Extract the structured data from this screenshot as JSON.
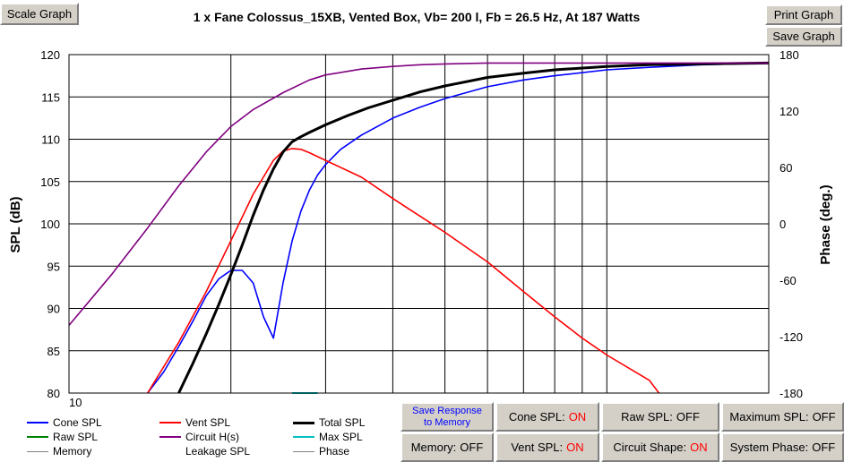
{
  "title": "1 x Fane Colossus_15XB,  Vented Box, Vb= 200 l,  Fb = 26.5 Hz,  At 187 Watts",
  "buttons": {
    "scale_graph": "Scale Graph",
    "print_graph": "Print Graph",
    "save_graph": "Save Graph",
    "save_response_line1": "Save Response",
    "save_response_line2": "to Memory",
    "cone_spl": {
      "label": "Cone SPL:",
      "state": "ON"
    },
    "raw_spl": {
      "label": "Raw SPL:",
      "state": "OFF"
    },
    "maximum_spl": {
      "label": "Maximum SPL:",
      "state": "OFF"
    },
    "memory": {
      "label": "Memory:",
      "state": "OFF"
    },
    "vent_spl": {
      "label": "Vent SPL:",
      "state": "ON"
    },
    "circuit_shape": {
      "label": "Circuit Shape:",
      "state": "ON"
    },
    "system_phase": {
      "label": "System Phase:",
      "state": "OFF"
    }
  },
  "legend": [
    {
      "name": "Cone SPL",
      "color": "#0000ff"
    },
    {
      "name": "Vent SPL",
      "color": "#ff0000"
    },
    {
      "name": "Total SPL",
      "color": "#000000"
    },
    {
      "name": "Raw SPL",
      "color": "#008000"
    },
    {
      "name": "Circuit H(s)",
      "color": "#800080"
    },
    {
      "name": "Max SPL",
      "color": "#00c0c0"
    },
    {
      "name": "Memory",
      "color": "#808080"
    },
    {
      "name": "Leakage SPL",
      "color": "#ffffff"
    },
    {
      "name": "Phase",
      "color": "#808080"
    }
  ],
  "chart_data": {
    "type": "line",
    "xlabel": "",
    "ylabel": "SPL (dB)",
    "y2label": "Phase (deg.)",
    "xscale": "log",
    "xlim": [
      10,
      200
    ],
    "ylim": [
      80,
      120
    ],
    "y2lim": [
      -180,
      180
    ],
    "x_tick_labels": [
      "10"
    ],
    "y_ticks": [
      80,
      85,
      90,
      95,
      100,
      105,
      110,
      115,
      120
    ],
    "y2_ticks": [
      -180,
      -120,
      -60,
      0,
      60,
      120,
      180
    ],
    "grid": true,
    "series": [
      {
        "name": "Cone SPL",
        "color": "#0000ff",
        "x": [
          14,
          15,
          16,
          17,
          18,
          19,
          20,
          21,
          22,
          23,
          24,
          25,
          26,
          27,
          28,
          29,
          30,
          32,
          35,
          40,
          45,
          50,
          60,
          70,
          80,
          100,
          120,
          150,
          200
        ],
        "y": [
          80,
          82.5,
          85.5,
          88.5,
          91.5,
          93.5,
          94.5,
          94.5,
          93,
          89,
          86.5,
          93,
          98,
          101.5,
          104,
          105.8,
          107,
          108.8,
          110.5,
          112.5,
          113.8,
          114.8,
          116.2,
          117,
          117.5,
          118.2,
          118.5,
          118.8,
          119
        ]
      },
      {
        "name": "Vent SPL",
        "color": "#ff0000",
        "x": [
          14,
          16,
          18,
          20,
          22,
          24,
          25,
          26,
          27,
          28,
          30,
          35,
          40,
          50,
          60,
          70,
          80,
          90,
          100,
          120,
          125
        ],
        "y": [
          80,
          86,
          92,
          98,
          103.5,
          107.5,
          108.6,
          108.9,
          108.8,
          108.4,
          107.5,
          105.5,
          103,
          99,
          95.5,
          92,
          89,
          86.5,
          84.5,
          81.5,
          80
        ]
      },
      {
        "name": "Total SPL",
        "color": "#000000",
        "x": [
          16,
          17,
          18,
          19,
          20,
          21,
          22,
          23,
          24,
          25,
          26,
          27,
          28,
          30,
          33,
          36,
          40,
          45,
          50,
          60,
          70,
          80,
          100,
          120,
          150,
          200
        ],
        "y": [
          80,
          83.5,
          87,
          90.5,
          94,
          97.5,
          101,
          104,
          106.5,
          108.5,
          109.7,
          110.3,
          110.8,
          111.7,
          112.8,
          113.7,
          114.6,
          115.6,
          116.3,
          117.3,
          117.8,
          118.2,
          118.6,
          118.8,
          118.9,
          119
        ]
      },
      {
        "name": "Circuit H(s)",
        "color": "#800080",
        "x": [
          10,
          12,
          14,
          16,
          18,
          20,
          22,
          25,
          28,
          30,
          35,
          40,
          45,
          50,
          60,
          80,
          100,
          150,
          200
        ],
        "y": [
          88,
          94,
          99.5,
          104.5,
          108.5,
          111.5,
          113.5,
          115.5,
          117,
          117.6,
          118.3,
          118.6,
          118.8,
          118.9,
          119,
          119,
          119,
          119,
          119
        ]
      },
      {
        "name": "Max SPL",
        "color": "#00c0c0",
        "x": [
          26,
          29
        ],
        "y": [
          80,
          80
        ]
      }
    ]
  }
}
